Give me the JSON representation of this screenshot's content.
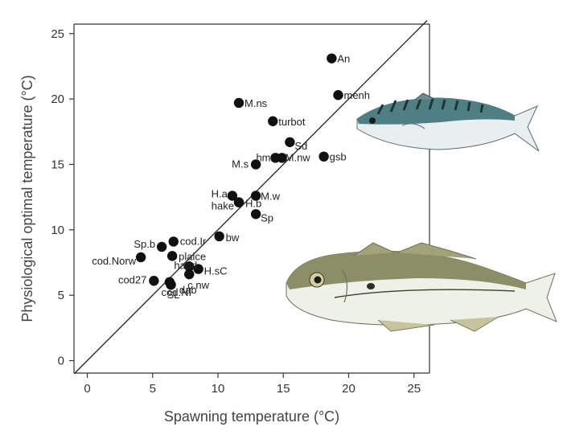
{
  "chart_data": {
    "type": "scatter",
    "xlabel": "Spawning temperature (°C)",
    "ylabel": "Physiological optimal temperature (°C)",
    "xlim": [
      -1,
      26
    ],
    "ylim": [
      -1,
      26
    ],
    "xticks": [
      0,
      5,
      10,
      15,
      20,
      25
    ],
    "yticks": [
      0,
      5,
      10,
      15,
      20,
      25
    ],
    "grid": false,
    "reference_line": "y = x",
    "points": [
      {
        "label": "An",
        "x": 18.7,
        "y": 23.1
      },
      {
        "label": "menh",
        "x": 19.2,
        "y": 20.3
      },
      {
        "label": "M.ns",
        "x": 11.6,
        "y": 19.7
      },
      {
        "label": "turbot",
        "x": 14.2,
        "y": 18.3
      },
      {
        "label": "Sd",
        "x": 15.5,
        "y": 16.7
      },
      {
        "label": "hm",
        "x": 14.4,
        "y": 15.5
      },
      {
        "label": "M.nw",
        "x": 14.9,
        "y": 15.5
      },
      {
        "label": "gsb",
        "x": 18.1,
        "y": 15.6
      },
      {
        "label": "M.s",
        "x": 12.9,
        "y": 15.0
      },
      {
        "label": "H.a",
        "x": 11.1,
        "y": 12.6
      },
      {
        "label": "M.w",
        "x": 12.9,
        "y": 12.6
      },
      {
        "label": "hake",
        "x": 11.6,
        "y": 12.1
      },
      {
        "label": "H.b",
        "x": 11.6,
        "y": 12.1
      },
      {
        "label": "Sp",
        "x": 12.9,
        "y": 11.2
      },
      {
        "label": "bw",
        "x": 10.1,
        "y": 9.5
      },
      {
        "label": "cod.Ir",
        "x": 6.6,
        "y": 9.1
      },
      {
        "label": "Sp.b",
        "x": 5.7,
        "y": 8.7
      },
      {
        "label": "plaice",
        "x": 6.5,
        "y": 8.0
      },
      {
        "label": "cod.Norw",
        "x": 4.1,
        "y": 7.9
      },
      {
        "label": "hadd",
        "x": 7.8,
        "y": 7.2
      },
      {
        "label": "H.sC",
        "x": 8.5,
        "y": 7.0
      },
      {
        "label": "c.nw",
        "x": 7.8,
        "y": 6.6
      },
      {
        "label": "cod27",
        "x": 5.1,
        "y": 6.1
      },
      {
        "label": "dab",
        "x": 6.3,
        "y": 6.0
      },
      {
        "label": "SL",
        "x": 6.4,
        "y": 5.8
      },
      {
        "label": "cod.NI",
        "x": 6.4,
        "y": 5.8
      }
    ]
  },
  "illustrations": {
    "fish_top": "mackerel",
    "fish_bottom": "haddock"
  },
  "colors": {
    "marker": "#111111",
    "axis": "#333333",
    "mackerel_back": "#4f7f83",
    "mackerel_belly": "#e9eef0",
    "haddock_back": "#8b8e66",
    "haddock_belly": "#eef1e8"
  }
}
